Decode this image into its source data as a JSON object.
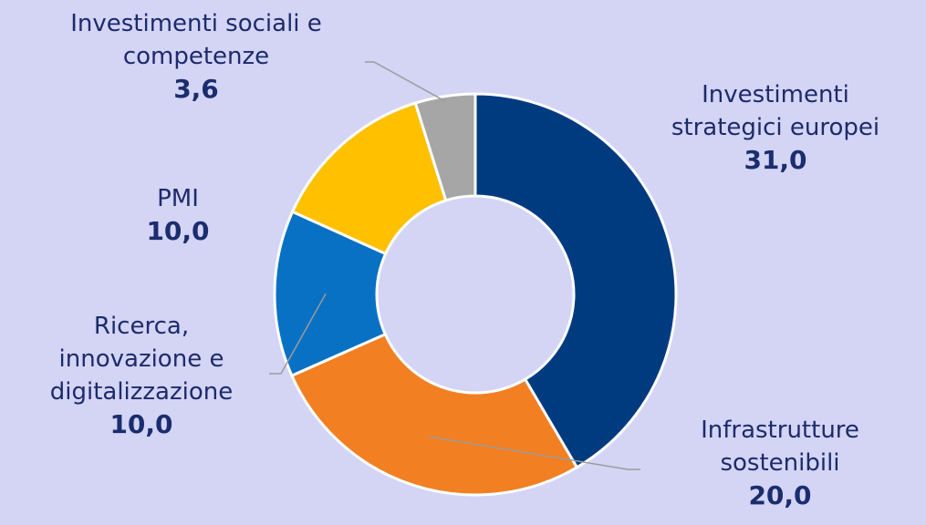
{
  "chart_data": {
    "type": "pie",
    "donut": true,
    "title": "",
    "slices": [
      {
        "label": "Investimenti\nstrategici europei",
        "value": 31.0,
        "value_label": "31,0",
        "color": "#003b80"
      },
      {
        "label": "Infrastrutture\nsostenibili",
        "value": 20.0,
        "value_label": "20,0",
        "color": "#f27f21"
      },
      {
        "label": "Ricerca,\ninnovazione e\ndigitalizzazione",
        "value": 10.0,
        "value_label": "10,0",
        "color": "#0971c4"
      },
      {
        "label": "PMI",
        "value": 10.0,
        "value_label": "10,0",
        "color": "#ffc000"
      },
      {
        "label": "Investimenti sociali e\ncompetenze",
        "value": 3.6,
        "value_label": "3,6",
        "color": "#a6a6a6"
      }
    ]
  }
}
